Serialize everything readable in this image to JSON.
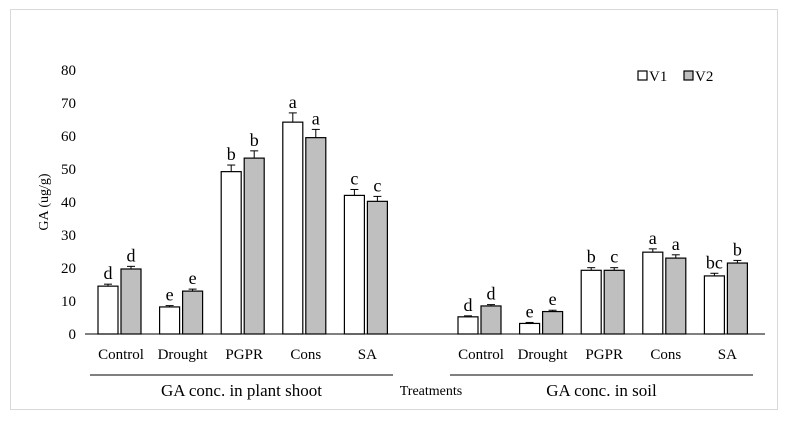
{
  "chart_data": {
    "type": "bar",
    "title": "",
    "ylabel": "GA (ug/g)",
    "xlabel": "Treatments",
    "ylim": [
      0,
      80
    ],
    "yticks": [
      0,
      10,
      20,
      30,
      40,
      50,
      60,
      70,
      80
    ],
    "grid": false,
    "legend_position": "top-right",
    "colors": {
      "V1": "#ffffff",
      "V2": "#bfbfbf",
      "edge": "#000000"
    },
    "groups": [
      {
        "label": "GA conc. in plant shoot",
        "categories": [
          "Control",
          "Drought",
          "PGPR",
          "Cons",
          "SA"
        ],
        "series": [
          {
            "name": "V1",
            "values": [
              14.5,
              8.2,
              49.2,
              64.2,
              42.0
            ],
            "errors": [
              0.6,
              0.4,
              2.0,
              2.8,
              1.8
            ],
            "letters": [
              "d",
              "e",
              "b",
              "a",
              "c"
            ]
          },
          {
            "name": "V2",
            "values": [
              19.7,
              13.0,
              53.3,
              59.5,
              40.2
            ],
            "errors": [
              0.8,
              0.6,
              2.2,
              2.5,
              1.5
            ],
            "letters": [
              "d",
              "e",
              "b",
              "a",
              "c"
            ]
          }
        ]
      },
      {
        "label": "GA conc. in soil",
        "categories": [
          "Control",
          "Drought",
          "PGPR",
          "Cons",
          "SA"
        ],
        "series": [
          {
            "name": "V1",
            "values": [
              5.2,
              3.2,
              19.3,
              24.8,
              17.6
            ],
            "errors": [
              0.3,
              0.3,
              0.8,
              1.0,
              0.8
            ],
            "letters": [
              "d",
              "e",
              "b",
              "a",
              "bc"
            ]
          },
          {
            "name": "V2",
            "values": [
              8.5,
              6.8,
              19.3,
              23.0,
              21.5
            ],
            "errors": [
              0.4,
              0.4,
              0.8,
              1.0,
              0.8
            ],
            "letters": [
              "d",
              "e",
              "c",
              "a",
              "b"
            ]
          }
        ]
      }
    ]
  }
}
